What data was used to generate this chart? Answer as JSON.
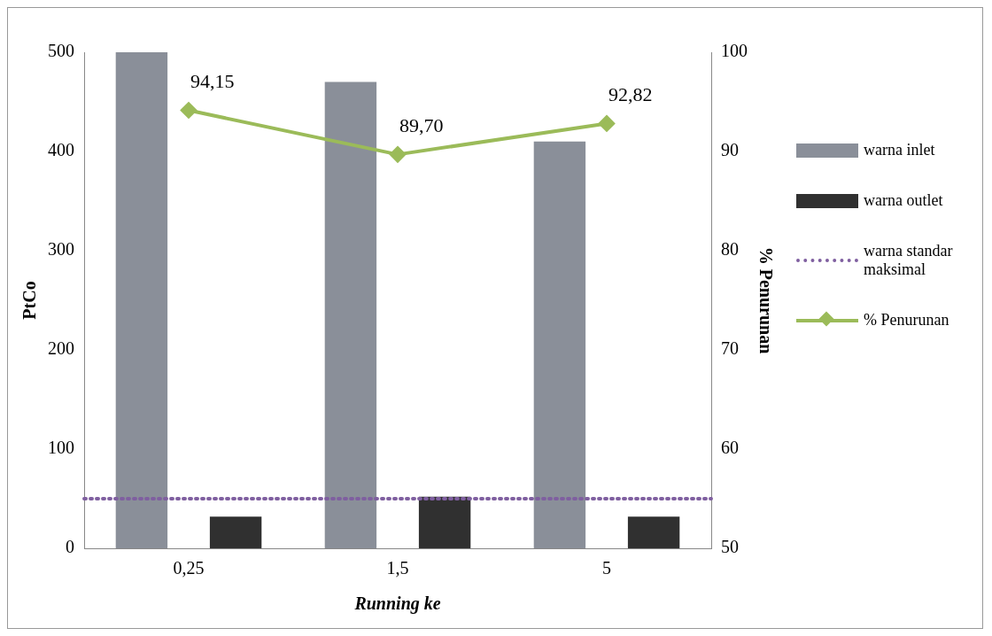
{
  "chart_data": {
    "type": "bar",
    "categories": [
      "0,25",
      "1,5",
      "5"
    ],
    "xlabel": "Running ke",
    "ylabel": "PtCo",
    "y2label": "% Penurunan",
    "series": [
      {
        "name": "warna inlet",
        "color": "#8a8f99",
        "values": [
          500,
          470,
          410
        ]
      },
      {
        "name": "warna outlet",
        "color": "#303030",
        "values": [
          32,
          52,
          32
        ]
      },
      {
        "name": "% Penurunan",
        "type": "line",
        "axis": "y2",
        "color": "#9bbb59",
        "marker": "diamond",
        "values": [
          94.15,
          89.7,
          92.82
        ],
        "value_labels": [
          "94,15",
          "89,70",
          "92,82"
        ]
      }
    ],
    "ref_lines": [
      {
        "axis": "y",
        "value": 50,
        "label": "warna standar maksimal",
        "color": "#7f5fa0",
        "line_style": "dotted"
      }
    ],
    "ylim": [
      0,
      500
    ],
    "yticks": [
      0,
      100,
      200,
      300,
      400,
      500
    ],
    "y2lim": [
      50,
      100
    ],
    "y2ticks": [
      50,
      60,
      70,
      80,
      90,
      100
    ],
    "grid": false,
    "legend": "right"
  }
}
